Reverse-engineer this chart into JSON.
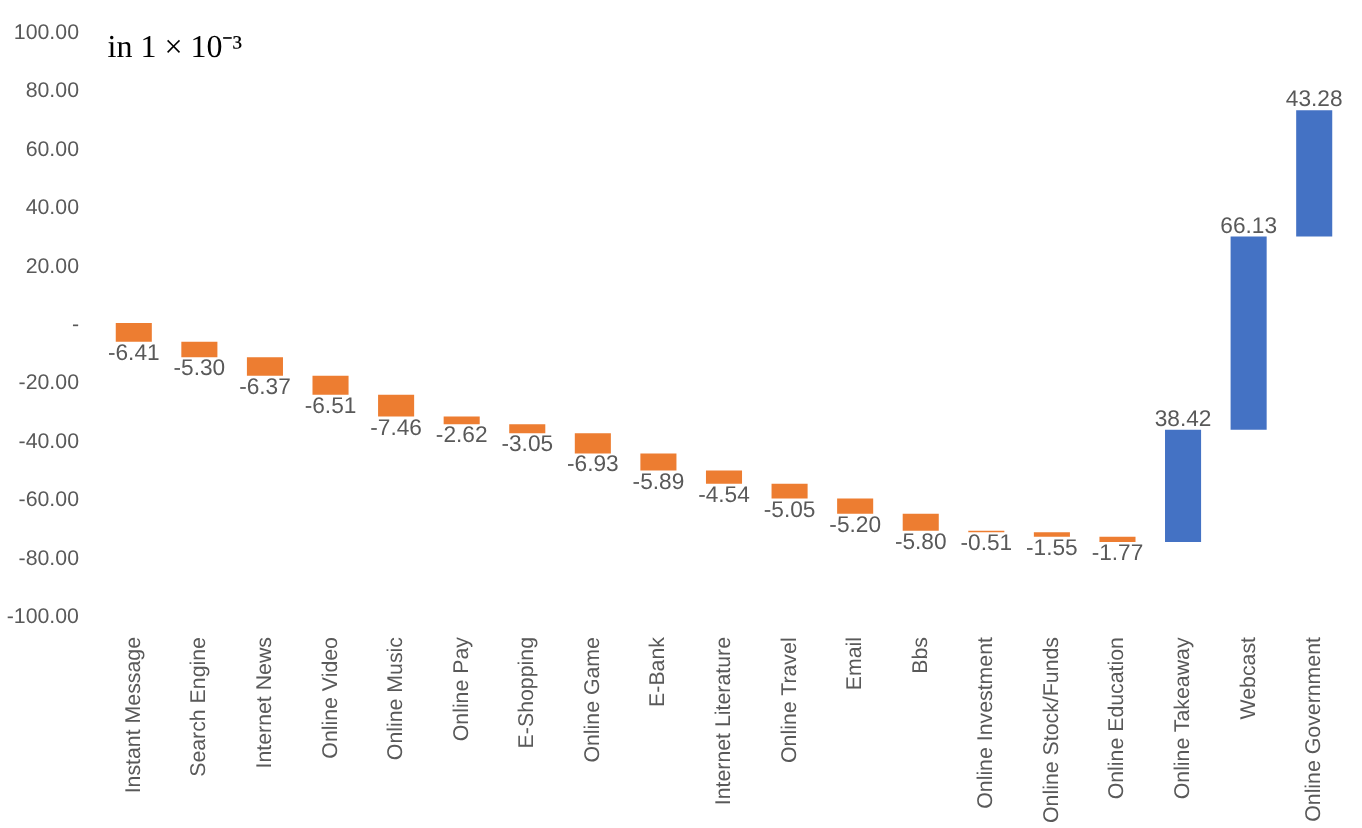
{
  "chart_data": {
    "type": "bar",
    "annotations": [
      "in 1 × 10⁻³"
    ],
    "categories": [
      "Instant Message",
      "Search Engine",
      "Internet News",
      "Online Video",
      "Online Music",
      "Online Pay",
      "E-Shopping",
      "Online Game",
      "E-Bank",
      "Internet Literature",
      "Online Travel",
      "Email",
      "Bbs",
      "Online Investment",
      "Online Stock/Funds",
      "Online Education",
      "Online Takeaway",
      "Webcast",
      "Online Government"
    ],
    "values": [
      -6.41,
      -5.3,
      -6.37,
      -6.51,
      -7.46,
      -2.62,
      -3.05,
      -6.93,
      -5.89,
      -4.54,
      -5.05,
      -5.2,
      -5.8,
      -0.51,
      -1.55,
      -1.77,
      38.42,
      66.13,
      43.28
    ],
    "base": [
      0,
      -6.41,
      -11.71,
      -18.08,
      -24.59,
      -32.05,
      -34.67,
      -37.72,
      -44.65,
      -50.54,
      -55.08,
      -60.13,
      -65.33,
      -71.13,
      -71.64,
      -73.19,
      -74.96,
      -36.54,
      29.59
    ],
    "colors": [
      "#ed7d31",
      "#ed7d31",
      "#ed7d31",
      "#ed7d31",
      "#ed7d31",
      "#ed7d31",
      "#ed7d31",
      "#ed7d31",
      "#ed7d31",
      "#ed7d31",
      "#ed7d31",
      "#ed7d31",
      "#ed7d31",
      "#ed7d31",
      "#ed7d31",
      "#ed7d31",
      "#4472c4",
      "#4472c4",
      "#4472c4"
    ],
    "value_labels": [
      "-6.41",
      "-5.30",
      "-6.37",
      "-6.51",
      "-7.46",
      "-2.62",
      "-3.05",
      "-6.93",
      "-5.89",
      "-4.54",
      "-5.05",
      "-5.20",
      "-5.80",
      "-0.51",
      "-1.55",
      "-1.77",
      "38.42",
      "66.13",
      "43.28"
    ],
    "ylim": [
      -100,
      100
    ],
    "yticks": [
      {
        "value": 100,
        "label": "100.00"
      },
      {
        "value": 80,
        "label": "80.00"
      },
      {
        "value": 60,
        "label": "60.00"
      },
      {
        "value": 40,
        "label": "40.00"
      },
      {
        "value": 20,
        "label": "20.00"
      },
      {
        "value": 0,
        "label": "-"
      },
      {
        "value": -20,
        "label": "-20.00"
      },
      {
        "value": -40,
        "label": "-40.00"
      },
      {
        "value": -60,
        "label": "-60.00"
      },
      {
        "value": -80,
        "label": "-80.00"
      },
      {
        "value": -100,
        "label": "-100.00"
      }
    ],
    "grid": false
  }
}
